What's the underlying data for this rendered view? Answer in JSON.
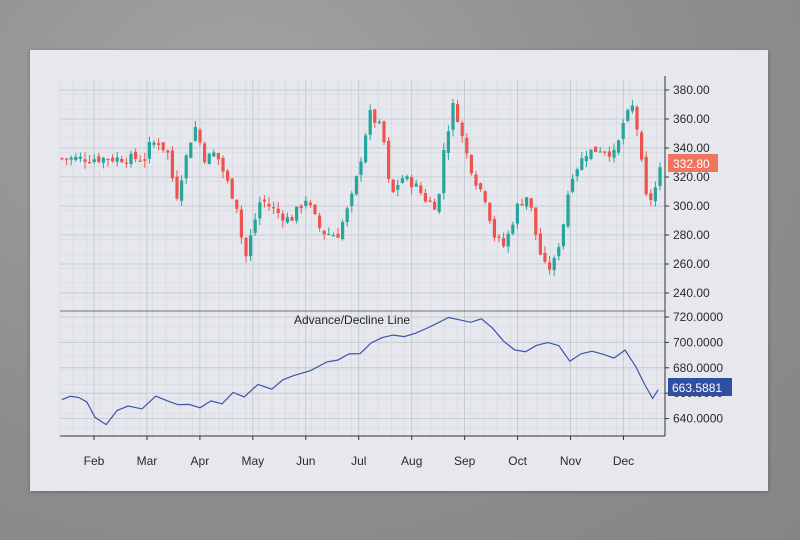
{
  "chart_data": [
    {
      "type": "candlestick",
      "title": "",
      "xlabel": "",
      "ylabel": "",
      "ylim": [
        235,
        385
      ],
      "yticks": [
        "380.00",
        "360.00",
        "340.00",
        "320.00",
        "300.00",
        "280.00",
        "260.00",
        "240.00"
      ],
      "xticks": [
        "Feb",
        "Mar",
        "Apr",
        "May",
        "Jun",
        "Jul",
        "Aug",
        "Sep",
        "Oct",
        "Nov",
        "Dec"
      ],
      "grid": true,
      "last_price_label": "332.80",
      "colors": {
        "up": "#26a69a",
        "down": "#ef5350",
        "price_badge": "#f07561"
      },
      "waypoints": [
        {
          "month": 1.0,
          "close": 340
        },
        {
          "month": 1.2,
          "close": 345
        },
        {
          "month": 1.4,
          "close": 336
        },
        {
          "month": 1.55,
          "close": 305
        },
        {
          "month": 1.7,
          "close": 328
        },
        {
          "month": 1.9,
          "close": 356
        },
        {
          "month": 2.1,
          "close": 332
        },
        {
          "month": 2.3,
          "close": 337
        },
        {
          "month": 2.5,
          "close": 318
        },
        {
          "month": 2.7,
          "close": 300
        },
        {
          "month": 2.85,
          "close": 262
        },
        {
          "month": 3.0,
          "close": 285
        },
        {
          "month": 3.15,
          "close": 305
        },
        {
          "month": 3.4,
          "close": 297
        },
        {
          "month": 3.7,
          "close": 290
        },
        {
          "month": 4.0,
          "close": 305
        },
        {
          "month": 4.3,
          "close": 282
        },
        {
          "month": 4.6,
          "close": 280
        },
        {
          "month": 4.85,
          "close": 303
        },
        {
          "month": 5.0,
          "close": 325
        },
        {
          "month": 5.2,
          "close": 364
        },
        {
          "month": 5.45,
          "close": 352
        },
        {
          "month": 5.6,
          "close": 305
        },
        {
          "month": 5.8,
          "close": 320
        },
        {
          "month": 6.05,
          "close": 315
        },
        {
          "month": 6.3,
          "close": 303
        },
        {
          "month": 6.5,
          "close": 300
        },
        {
          "month": 6.6,
          "close": 338
        },
        {
          "month": 6.8,
          "close": 372
        },
        {
          "month": 7.0,
          "close": 340
        },
        {
          "month": 7.2,
          "close": 318
        },
        {
          "month": 7.4,
          "close": 305
        },
        {
          "month": 7.55,
          "close": 280
        },
        {
          "month": 7.75,
          "close": 272
        },
        {
          "month": 8.0,
          "close": 300
        },
        {
          "month": 8.2,
          "close": 308
        },
        {
          "month": 8.4,
          "close": 270
        },
        {
          "month": 8.55,
          "close": 255
        },
        {
          "month": 8.7,
          "close": 262
        },
        {
          "month": 8.85,
          "close": 285
        },
        {
          "month": 9.0,
          "close": 320
        },
        {
          "month": 9.3,
          "close": 337
        },
        {
          "month": 9.6,
          "close": 340
        },
        {
          "month": 9.85,
          "close": 335
        },
        {
          "month": 10.0,
          "close": 358
        },
        {
          "month": 10.2,
          "close": 370
        },
        {
          "month": 10.3,
          "close": 340
        },
        {
          "month": 10.45,
          "close": 300
        },
        {
          "month": 10.6,
          "close": 312
        },
        {
          "month": 10.75,
          "close": 332.8
        }
      ]
    },
    {
      "type": "line",
      "title": "Advance/Decline Line",
      "ylim": [
        630,
        728
      ],
      "yticks": [
        "720.0000",
        "700.0000",
        "680.0000",
        "660.0000",
        "640.0000"
      ],
      "last_value_label": "663.5881",
      "colors": {
        "line": "#3a55a8",
        "value_badge": "#2f4fa0"
      },
      "x": [
        0.0,
        0.15,
        0.3,
        0.45,
        0.6,
        0.8,
        1.0,
        1.2,
        1.45,
        1.7,
        1.9,
        2.1,
        2.3,
        2.5,
        2.7,
        2.9,
        3.1,
        3.3,
        3.55,
        3.8,
        4.0,
        4.2,
        4.5,
        4.8,
        5.0,
        5.2,
        5.4,
        5.6,
        5.8,
        6.0,
        6.2,
        6.4,
        6.6,
        6.8,
        7.0,
        7.2,
        7.4,
        7.6,
        7.8,
        8.0,
        8.2,
        8.4,
        8.6,
        8.8,
        9.0,
        9.2,
        9.4,
        9.6,
        9.8,
        10.0,
        10.2,
        10.4,
        10.55,
        10.7,
        10.8
      ],
      "y": [
        655,
        658,
        656,
        654,
        640,
        636,
        646,
        650,
        648,
        657,
        655,
        650,
        652,
        648,
        654,
        652,
        660,
        658,
        666,
        664,
        670,
        674,
        678,
        684,
        687,
        690,
        692,
        699,
        704,
        706,
        704,
        708,
        710,
        716,
        719,
        718,
        716,
        718,
        712,
        700,
        695,
        692,
        698,
        700,
        697,
        686,
        690,
        694,
        690,
        688,
        694,
        680,
        668,
        655,
        663.5881
      ]
    }
  ]
}
